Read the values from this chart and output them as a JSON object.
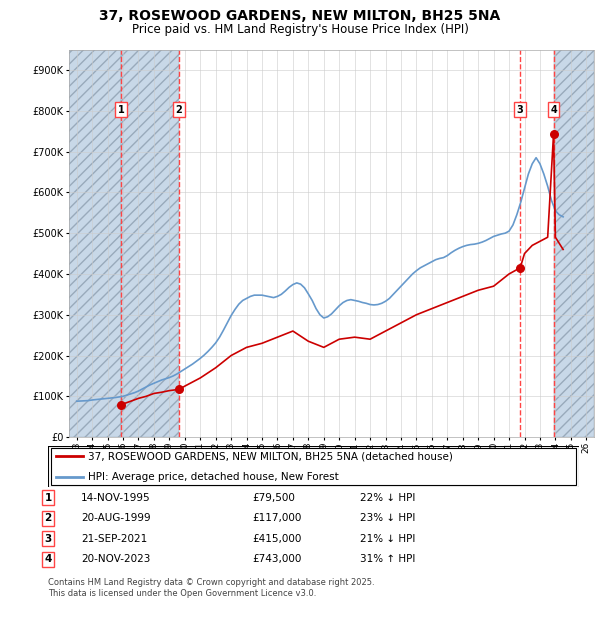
{
  "title": "37, ROSEWOOD GARDENS, NEW MILTON, BH25 5NA",
  "subtitle": "Price paid vs. HM Land Registry's House Price Index (HPI)",
  "legend_line1": "37, ROSEWOOD GARDENS, NEW MILTON, BH25 5NA (detached house)",
  "legend_line2": "HPI: Average price, detached house, New Forest",
  "transactions": [
    {
      "num": 1,
      "date": "14-NOV-1995",
      "price": 79500,
      "pct": "22%",
      "dir": "↓",
      "year": 1995.87
    },
    {
      "num": 2,
      "date": "20-AUG-1999",
      "price": 117000,
      "pct": "23%",
      "dir": "↓",
      "year": 1999.63
    },
    {
      "num": 3,
      "date": "21-SEP-2021",
      "price": 415000,
      "pct": "21%",
      "dir": "↓",
      "year": 2021.72
    },
    {
      "num": 4,
      "date": "20-NOV-2023",
      "price": 743000,
      "pct": "31%",
      "dir": "↑",
      "year": 2023.88
    }
  ],
  "hpi_color": "#6699cc",
  "price_color": "#cc0000",
  "vline_color": "#ff4444",
  "hatch_color": "#c8d8e8",
  "hatch_edge_color": "#99aabb",
  "footnote1": "Contains HM Land Registry data © Crown copyright and database right 2025.",
  "footnote2": "This data is licensed under the Open Government Licence v3.0.",
  "ylim_max": 950000,
  "xlim_min": 1992.5,
  "xlim_max": 2026.5,
  "hpi_data": {
    "years": [
      1993,
      1993.25,
      1993.5,
      1993.75,
      1994,
      1994.25,
      1994.5,
      1994.75,
      1995,
      1995.25,
      1995.5,
      1995.75,
      1996,
      1996.25,
      1996.5,
      1996.75,
      1997,
      1997.25,
      1997.5,
      1997.75,
      1998,
      1998.25,
      1998.5,
      1998.75,
      1999,
      1999.25,
      1999.5,
      1999.75,
      2000,
      2000.25,
      2000.5,
      2000.75,
      2001,
      2001.25,
      2001.5,
      2001.75,
      2002,
      2002.25,
      2002.5,
      2002.75,
      2003,
      2003.25,
      2003.5,
      2003.75,
      2004,
      2004.25,
      2004.5,
      2004.75,
      2005,
      2005.25,
      2005.5,
      2005.75,
      2006,
      2006.25,
      2006.5,
      2006.75,
      2007,
      2007.25,
      2007.5,
      2007.75,
      2008,
      2008.25,
      2008.5,
      2008.75,
      2009,
      2009.25,
      2009.5,
      2009.75,
      2010,
      2010.25,
      2010.5,
      2010.75,
      2011,
      2011.25,
      2011.5,
      2011.75,
      2012,
      2012.25,
      2012.5,
      2012.75,
      2013,
      2013.25,
      2013.5,
      2013.75,
      2014,
      2014.25,
      2014.5,
      2014.75,
      2015,
      2015.25,
      2015.5,
      2015.75,
      2016,
      2016.25,
      2016.5,
      2016.75,
      2017,
      2017.25,
      2017.5,
      2017.75,
      2018,
      2018.25,
      2018.5,
      2018.75,
      2019,
      2019.25,
      2019.5,
      2019.75,
      2020,
      2020.25,
      2020.5,
      2020.75,
      2021,
      2021.25,
      2021.5,
      2021.75,
      2022,
      2022.25,
      2022.5,
      2022.75,
      2023,
      2023.25,
      2023.5,
      2023.75,
      2024,
      2024.25,
      2024.5
    ],
    "values": [
      88000,
      88500,
      89000,
      89500,
      91000,
      92000,
      93000,
      94000,
      95000,
      96000,
      97000,
      98500,
      100000,
      103000,
      106000,
      109000,
      113000,
      118000,
      123000,
      128000,
      132000,
      136000,
      140000,
      143000,
      146000,
      150000,
      155000,
      161000,
      167000,
      173000,
      179000,
      186000,
      193000,
      201000,
      210000,
      220000,
      231000,
      245000,
      262000,
      280000,
      298000,
      313000,
      326000,
      335000,
      340000,
      345000,
      348000,
      348000,
      348000,
      346000,
      344000,
      342000,
      345000,
      350000,
      358000,
      367000,
      374000,
      378000,
      375000,
      366000,
      351000,
      335000,
      315000,
      300000,
      292000,
      295000,
      302000,
      312000,
      322000,
      330000,
      335000,
      337000,
      335000,
      333000,
      330000,
      328000,
      325000,
      324000,
      325000,
      328000,
      333000,
      340000,
      350000,
      360000,
      370000,
      380000,
      390000,
      400000,
      408000,
      415000,
      420000,
      425000,
      430000,
      435000,
      438000,
      440000,
      445000,
      452000,
      458000,
      463000,
      467000,
      470000,
      472000,
      473000,
      475000,
      478000,
      482000,
      487000,
      492000,
      495000,
      498000,
      500000,
      505000,
      520000,
      545000,
      575000,
      610000,
      645000,
      670000,
      685000,
      670000,
      645000,
      615000,
      580000,
      555000,
      545000,
      540000
    ]
  },
  "interp_price_data": {
    "years": [
      1995.87,
      1996.5,
      1997,
      1997.5,
      1998,
      1998.5,
      1999,
      1999.63,
      1999.63,
      2000,
      2001,
      2002,
      2003,
      2004,
      2005,
      2006,
      2007,
      2008,
      2009,
      2010,
      2011,
      2012,
      2013,
      2014,
      2015,
      2016,
      2017,
      2018,
      2019,
      2020,
      2021,
      2021.72,
      2021.72,
      2022,
      2022.5,
      2023,
      2023.5,
      2023.88,
      2023.88,
      2024,
      2024.5
    ],
    "values": [
      79500,
      88000,
      95000,
      100000,
      107000,
      110000,
      114000,
      117000,
      117000,
      125000,
      145000,
      170000,
      200000,
      220000,
      230000,
      245000,
      260000,
      235000,
      220000,
      240000,
      245000,
      240000,
      260000,
      280000,
      300000,
      315000,
      330000,
      345000,
      360000,
      370000,
      400000,
      415000,
      415000,
      450000,
      470000,
      480000,
      490000,
      743000,
      743000,
      490000,
      460000
    ]
  }
}
